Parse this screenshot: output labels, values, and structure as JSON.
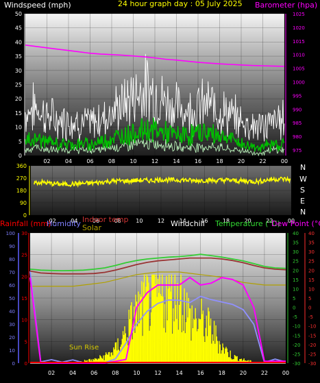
{
  "header": {
    "wind_label": "Windspeed (mph)",
    "title": "24 hour graph day : 05 July 2025",
    "baro_label": "Barometer (hpa)"
  },
  "legend": {
    "rainfall": "Rainfall (mm)",
    "humidity": "Humidity",
    "indoor_temp": "Indoor temp",
    "solar": "Solar",
    "windchill": "Windchill",
    "temperature": "Temperature (°C)",
    "dew_point": "Dew Point (°C)"
  },
  "direction_letters": [
    "N",
    "W",
    "S",
    "E",
    "N"
  ],
  "annotations": {
    "sunrise": "Sun Rise"
  },
  "colors": {
    "wind_gust": "#ffffff",
    "wind_avg": "#00c000",
    "wind_low": "#b8f0b8",
    "barometer": "#ff00ff",
    "direction": "#ffff00",
    "humidity": "#9090ff",
    "temperature": "#33cc33",
    "dew_point": "#ff00ff",
    "indoor_temp": "#993333",
    "solar": "#ffff00",
    "windchill": "#ffffff",
    "rainfall": "#ff0000",
    "solar_max": "#b0a000"
  },
  "chart_data": [
    {
      "type": "line",
      "name": "wind-barometer",
      "title": "24 hour graph day : 05 July 2025",
      "ylabel": "Windspeed (mph)",
      "y2label": "Barometer (hpa)",
      "xticks": [
        "02",
        "04",
        "06",
        "08",
        "10",
        "12",
        "14",
        "16",
        "18",
        "20",
        "22",
        "00"
      ],
      "ylim": [
        0,
        50
      ],
      "yticks": [
        0,
        5,
        10,
        15,
        20,
        25,
        30,
        35,
        40,
        45,
        50
      ],
      "y2lim": [
        973,
        1025
      ],
      "y2ticks": [
        975,
        980,
        985,
        990,
        995,
        1000,
        1005,
        1010,
        1015,
        1020,
        1025
      ],
      "series": [
        {
          "name": "Barometer",
          "axis": "right",
          "x": [
            0,
            1,
            2,
            3,
            4,
            5,
            6,
            7,
            8,
            9,
            10,
            11,
            12,
            13,
            14,
            15,
            16,
            17,
            18,
            19,
            20,
            21,
            22,
            23,
            24
          ],
          "values": [
            1013.5,
            1013.0,
            1012.5,
            1012.0,
            1011.5,
            1011.0,
            1010.5,
            1010.2,
            1010.0,
            1009.8,
            1009.5,
            1009.2,
            1008.8,
            1008.3,
            1008.0,
            1007.6,
            1007.2,
            1006.9,
            1006.6,
            1006.4,
            1006.2,
            1006.0,
            1005.9,
            1005.8,
            1005.7
          ]
        },
        {
          "name": "Gust",
          "axis": "left",
          "x": [
            0,
            1,
            2,
            3,
            4,
            5,
            6,
            7,
            8,
            9,
            10,
            11,
            12,
            13,
            14,
            15,
            16,
            17,
            18,
            19,
            20,
            21,
            22,
            23,
            24
          ],
          "values": [
            15,
            17,
            14,
            12,
            13,
            12,
            11,
            13,
            15,
            18,
            21,
            24,
            22,
            19,
            17,
            16,
            17,
            18,
            16,
            14,
            12,
            11,
            10,
            12,
            13
          ]
        },
        {
          "name": "Average",
          "axis": "left",
          "x": [
            0,
            1,
            2,
            3,
            4,
            5,
            6,
            7,
            8,
            9,
            10,
            11,
            12,
            13,
            14,
            15,
            16,
            17,
            18,
            19,
            20,
            21,
            22,
            23,
            24
          ],
          "values": [
            5,
            6,
            5,
            4,
            4,
            4,
            4,
            5,
            6,
            7,
            8,
            9,
            9,
            8,
            7,
            7,
            8,
            8,
            7,
            6,
            4,
            3,
            3,
            4,
            4
          ]
        },
        {
          "name": "Lull",
          "axis": "left",
          "x": [
            0,
            1,
            2,
            3,
            4,
            5,
            6,
            7,
            8,
            9,
            10,
            11,
            12,
            13,
            14,
            15,
            16,
            17,
            18,
            19,
            20,
            21,
            22,
            23,
            24
          ],
          "values": [
            2,
            3,
            2,
            2,
            2,
            2,
            2,
            2,
            3,
            3,
            4,
            4,
            4,
            4,
            3,
            3,
            3,
            3,
            3,
            2,
            2,
            1,
            1,
            2,
            2
          ]
        }
      ]
    },
    {
      "type": "scatter",
      "name": "wind-direction",
      "xticks": [
        "02",
        "04",
        "06",
        "08",
        "10",
        "12",
        "14",
        "16",
        "18",
        "20",
        "22",
        "00"
      ],
      "ylim": [
        0,
        360
      ],
      "yticks": [
        0,
        90,
        180,
        270,
        360
      ],
      "series": [
        {
          "name": "Direction",
          "x": [
            0,
            1,
            2,
            3,
            4,
            5,
            6,
            7,
            8,
            9,
            10,
            11,
            12,
            13,
            14,
            15,
            16,
            17,
            18,
            19,
            20,
            21,
            22,
            23,
            24
          ],
          "values": [
            235,
            240,
            230,
            225,
            228,
            232,
            236,
            245,
            250,
            248,
            255,
            252,
            260,
            255,
            258,
            250,
            255,
            252,
            256,
            250,
            248,
            245,
            260,
            265,
            258
          ]
        }
      ]
    },
    {
      "type": "line",
      "name": "temperature-humidity-solar",
      "xticks": [
        "02",
        "04",
        "06",
        "08",
        "10",
        "12",
        "14",
        "16",
        "18",
        "20",
        "22",
        "00"
      ],
      "humidity_ylim": [
        0,
        100
      ],
      "humidity_yticks": [
        0,
        10,
        20,
        30,
        40,
        50,
        60,
        70,
        80,
        90,
        100
      ],
      "rain_ylim": [
        0,
        30
      ],
      "rain_yticks": [
        0,
        5,
        10,
        15,
        20,
        25,
        30
      ],
      "temp_ylim": [
        -30,
        40
      ],
      "temp_yticks": [
        -30,
        -25,
        -20,
        -15,
        -10,
        -5,
        0,
        5,
        10,
        15,
        20,
        25,
        30,
        35,
        40
      ],
      "dew_ylim": [
        -30,
        40
      ],
      "dew_yticks": [
        -30,
        -25,
        -20,
        -15,
        -10,
        -5,
        0,
        5,
        10,
        15,
        20,
        25,
        30,
        35,
        40
      ],
      "series": [
        {
          "name": "Temperature",
          "x": [
            0,
            1,
            2,
            3,
            4,
            5,
            6,
            7,
            8,
            9,
            10,
            11,
            12,
            13,
            14,
            15,
            16,
            17,
            18,
            19,
            20,
            21,
            22,
            23,
            24
          ],
          "values": [
            20.5,
            20,
            19.8,
            19.7,
            19.8,
            20,
            20.5,
            21.2,
            22.5,
            24,
            25.2,
            26,
            26.5,
            27,
            27.3,
            27.8,
            28.5,
            27.8,
            27,
            26,
            25,
            23.5,
            22,
            21.2,
            21
          ]
        },
        {
          "name": "Indoor temp",
          "x": [
            0,
            1,
            2,
            3,
            4,
            5,
            6,
            7,
            8,
            9,
            10,
            11,
            12,
            13,
            14,
            15,
            16,
            17,
            18,
            19,
            20,
            21,
            22,
            23,
            24
          ],
          "values": [
            19.5,
            18.5,
            18.2,
            18,
            18,
            18,
            18.2,
            18.8,
            20,
            21.5,
            23,
            24.2,
            25,
            25.5,
            26,
            26.5,
            26.5,
            26.5,
            26,
            25.2,
            24,
            22.5,
            21.2,
            20.5,
            20.2
          ]
        },
        {
          "name": "Dew Point",
          "x": [
            0,
            1,
            2,
            3,
            4,
            5,
            6,
            7,
            8,
            9,
            10,
            11,
            12,
            13,
            14,
            15,
            16,
            17,
            18,
            19,
            20,
            21,
            22,
            23,
            24
          ],
          "values": [
            16,
            -30,
            -30,
            -30,
            -30,
            -30,
            -30,
            -30,
            -29,
            -28,
            0,
            8,
            12,
            12,
            12,
            16,
            12,
            13,
            16,
            15,
            12,
            0,
            -29,
            -29,
            -29
          ]
        },
        {
          "name": "Windchill",
          "x": [
            0,
            1,
            2,
            3,
            4,
            5,
            6,
            7,
            8,
            9,
            10,
            11,
            12,
            13,
            14,
            15,
            16,
            17,
            18,
            19,
            20,
            21,
            22,
            23,
            24
          ],
          "values": [
            -30,
            -30,
            -30,
            -30,
            -30,
            -30,
            -30,
            -30,
            -30,
            -30,
            -30,
            -30,
            -30,
            -30,
            -30,
            -30,
            -30,
            -30,
            -30,
            -30,
            -30,
            -30,
            -30,
            -30,
            -30
          ]
        },
        {
          "name": "Humidity",
          "x": [
            0,
            1,
            2,
            3,
            4,
            5,
            6,
            7,
            8,
            9,
            10,
            11,
            12,
            13,
            14,
            15,
            16,
            17,
            18,
            19,
            20,
            21,
            22,
            23,
            24
          ],
          "values": [
            70,
            1,
            1,
            1,
            1,
            1,
            1,
            2,
            5,
            15,
            30,
            40,
            45,
            48,
            50,
            48,
            50,
            50,
            48,
            45,
            42,
            30,
            2,
            2,
            2
          ]
        },
        {
          "name": "Solar",
          "x": [
            0,
            1,
            2,
            3,
            4,
            5,
            6,
            7,
            8,
            9,
            10,
            11,
            12,
            13,
            14,
            15,
            16,
            17,
            18,
            19,
            20,
            21,
            22,
            23,
            24
          ],
          "values": [
            0,
            0,
            0,
            0,
            0,
            2,
            3,
            6,
            12,
            28,
            45,
            55,
            60,
            62,
            65,
            40,
            38,
            30,
            15,
            6,
            3,
            1,
            0,
            0,
            0
          ]
        },
        {
          "name": "Solar max",
          "x": [
            0,
            1,
            2,
            3,
            4,
            5,
            6,
            7,
            8,
            9,
            10,
            11,
            12,
            13,
            14,
            15,
            16,
            17,
            18,
            19,
            20,
            21,
            22,
            23,
            24
          ],
          "values": [
            59,
            59,
            59,
            59,
            59,
            60,
            61,
            62,
            64,
            66,
            68,
            69,
            70,
            70,
            70,
            69,
            68,
            67,
            66,
            64,
            62,
            61,
            60,
            60,
            60
          ]
        },
        {
          "name": "Rainfall",
          "x": [
            0,
            24
          ],
          "values": [
            0,
            0
          ]
        }
      ]
    }
  ]
}
